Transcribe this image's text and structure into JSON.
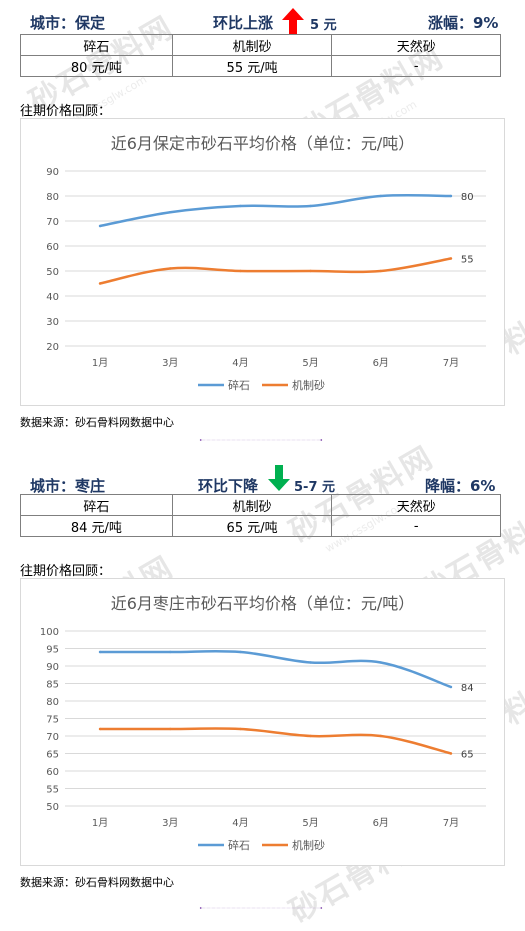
{
  "watermark": {
    "text": "砂石骨料网",
    "url": "www.cssglw.com"
  },
  "sections": [
    {
      "city_label": "城市：保定",
      "change_label": "环比上涨",
      "change_value": "5 元",
      "change_direction": "up",
      "range_label": "涨幅：9%",
      "table_headers": [
        "碎石",
        "机制砂",
        "天然砂"
      ],
      "table_values": [
        "80 元/吨",
        "55 元/吨",
        "-"
      ],
      "review_label": "往期价格回顾：",
      "source": "数据来源：砂石骨料网数据中心"
    },
    {
      "city_label": "城市：枣庄",
      "change_label": "环比下降",
      "change_value": "5-7 元",
      "change_direction": "down",
      "range_label": "降幅：6%",
      "table_headers": [
        "碎石",
        "机制砂",
        "天然砂"
      ],
      "table_values": [
        "84 元/吨",
        "65 元/吨",
        "-"
      ],
      "review_label": "往期价格回顾：",
      "source": "数据来源：砂石骨料网数据中心"
    }
  ],
  "colors": {
    "header_text": "#1f3864",
    "up_arrow": "#ff0000",
    "down_arrow": "#00b050",
    "series_crushed": "#5b9bd5",
    "series_sand": "#ed7d31",
    "divider": "#7030a0"
  },
  "chart_data": [
    {
      "type": "line",
      "title": "近6月保定市砂石平均价格（单位：元/吨）",
      "categories": [
        "1月",
        "3月",
        "4月",
        "5月",
        "6月",
        "7月"
      ],
      "series": [
        {
          "name": "碎石",
          "values": [
            68,
            73.5,
            76,
            76,
            80,
            80
          ],
          "end_label": "80"
        },
        {
          "name": "机制砂",
          "values": [
            45,
            51,
            50,
            50,
            50,
            55
          ],
          "end_label": "55"
        }
      ],
      "yticks": [
        "90",
        "80",
        "70",
        "60",
        "50",
        "40",
        "30",
        "20"
      ],
      "ylim": [
        20,
        90
      ],
      "legend": "bottom",
      "grid": true
    },
    {
      "type": "line",
      "title": "近6月枣庄市砂石平均价格（单位：元/吨）",
      "categories": [
        "1月",
        "3月",
        "4月",
        "5月",
        "6月",
        "7月"
      ],
      "series": [
        {
          "name": "碎石",
          "values": [
            94,
            94,
            94,
            91,
            91,
            84
          ],
          "end_label": "84"
        },
        {
          "name": "机制砂",
          "values": [
            72,
            72,
            72,
            70,
            70,
            65
          ],
          "end_label": "65"
        }
      ],
      "yticks": [
        "100",
        "95",
        "90",
        "85",
        "80",
        "75",
        "70",
        "65",
        "60",
        "55",
        "50"
      ],
      "ylim": [
        50,
        100
      ],
      "legend": "bottom",
      "grid": true
    }
  ]
}
